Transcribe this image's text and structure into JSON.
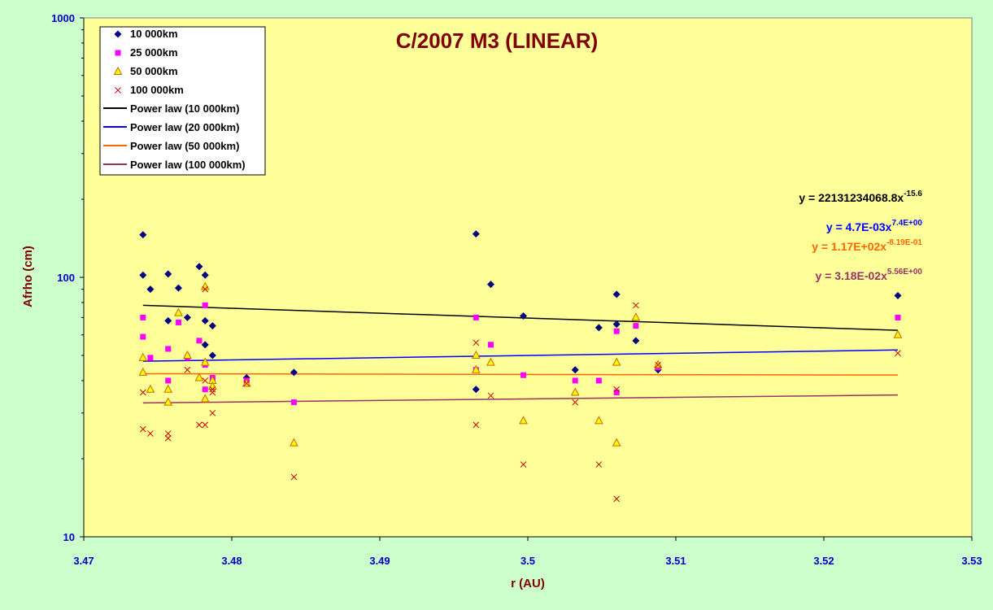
{
  "chart_data": {
    "type": "scatter",
    "title": "C/2007 M3 (LINEAR)",
    "xlabel": "r (AU)",
    "ylabel": "Afrho (cm)",
    "xlim": [
      3.47,
      3.53
    ],
    "ylim": [
      10,
      1000
    ],
    "y_scale": "log",
    "x_ticks": [
      "3.47",
      "3.48",
      "3.49",
      "3.5",
      "3.51",
      "3.52",
      "3.53"
    ],
    "y_ticks": [
      "10",
      "100",
      "1000"
    ],
    "grid": false,
    "legend_position": "top-left",
    "colors": {
      "background": "#ccffcc",
      "plot_area": "#ffff99",
      "series_10000": "#000080",
      "series_25000": "#ff00ff",
      "series_50000_fill": "#ffff00",
      "series_50000_edge": "#cc6600",
      "series_100000": "#cc0000",
      "fit_10000": "#000000",
      "fit_20000": "#0000ff",
      "fit_50000": "#ff6600",
      "fit_100000": "#993366"
    },
    "series": [
      {
        "name": "10 000km",
        "marker": "diamond",
        "x": [
          3.474,
          3.474,
          3.4745,
          3.4757,
          3.4757,
          3.4764,
          3.477,
          3.4778,
          3.4782,
          3.4782,
          3.4782,
          3.4787,
          3.4787,
          3.481,
          3.4842,
          3.4965,
          3.4965,
          3.4975,
          3.4997,
          3.5032,
          3.5048,
          3.506,
          3.506,
          3.5073,
          3.5088,
          3.525
        ],
        "y": [
          146,
          102,
          90,
          103,
          68,
          91,
          70,
          110,
          102,
          68,
          55,
          65,
          50,
          41,
          43,
          147,
          37,
          94,
          71,
          44,
          64,
          86,
          66,
          57,
          44,
          85
        ]
      },
      {
        "name": "25 000km",
        "marker": "square",
        "x": [
          3.474,
          3.474,
          3.4745,
          3.4757,
          3.4757,
          3.4764,
          3.477,
          3.4778,
          3.4782,
          3.4782,
          3.4782,
          3.4787,
          3.4787,
          3.481,
          3.4842,
          3.4965,
          3.4965,
          3.4975,
          3.4997,
          3.5032,
          3.5048,
          3.506,
          3.506,
          3.5073,
          3.5088,
          3.525
        ],
        "y": [
          70,
          59,
          49,
          53,
          40,
          67,
          49,
          57,
          78,
          46,
          37,
          41,
          40,
          40,
          33,
          70,
          44,
          55,
          42,
          40,
          40,
          36,
          62,
          65,
          45,
          70
        ]
      },
      {
        "name": "50 000km",
        "marker": "triangle",
        "x": [
          3.474,
          3.474,
          3.4745,
          3.4757,
          3.4757,
          3.4764,
          3.477,
          3.4778,
          3.4782,
          3.4782,
          3.4782,
          3.4787,
          3.4787,
          3.481,
          3.4842,
          3.4965,
          3.4965,
          3.4975,
          3.4997,
          3.5032,
          3.5048,
          3.506,
          3.506,
          3.5073,
          3.5088,
          3.525
        ],
        "y": [
          49,
          43,
          37,
          37,
          33,
          73,
          50,
          41,
          92,
          47,
          34,
          40,
          38,
          39,
          23,
          50,
          44,
          47,
          28,
          36,
          28,
          47,
          23,
          70,
          46,
          60
        ]
      },
      {
        "name": "100 000km",
        "marker": "x",
        "x": [
          3.474,
          3.474,
          3.4745,
          3.4757,
          3.4757,
          3.477,
          3.4778,
          3.4782,
          3.4782,
          3.4782,
          3.4787,
          3.4787,
          3.4787,
          3.481,
          3.4842,
          3.4965,
          3.4965,
          3.4975,
          3.4997,
          3.5032,
          3.5048,
          3.506,
          3.506,
          3.5073,
          3.5088,
          3.525
        ],
        "y": [
          26,
          36,
          25,
          24,
          25,
          44,
          27,
          90,
          40,
          27,
          37,
          36,
          30,
          39,
          17,
          56,
          27,
          35,
          19,
          33,
          19,
          37,
          14,
          78,
          46,
          51
        ]
      }
    ],
    "fits": [
      {
        "name": "Power law (10 000km)",
        "equation": "y = 22131234068.8x",
        "exponent": "-15.6",
        "x": [
          3.474,
          3.525
        ],
        "y": [
          78,
          62.5
        ]
      },
      {
        "name": "Power law (20 000km)",
        "equation": "y = 4.7E-03x",
        "exponent": "7.4E+00",
        "x": [
          3.474,
          3.525
        ],
        "y": [
          47.5,
          52.5
        ]
      },
      {
        "name": "Power law (50 000km)",
        "equation": "y = 1.17E+02x",
        "exponent": "-8.19E-01",
        "x": [
          3.474,
          3.525
        ],
        "y": [
          42.5,
          42
        ]
      },
      {
        "name": "Power law (100 000km)",
        "equation": "y = 3.18E-02x",
        "exponent": "5.56E+00",
        "x": [
          3.474,
          3.525
        ],
        "y": [
          32.8,
          35.2
        ]
      }
    ]
  }
}
